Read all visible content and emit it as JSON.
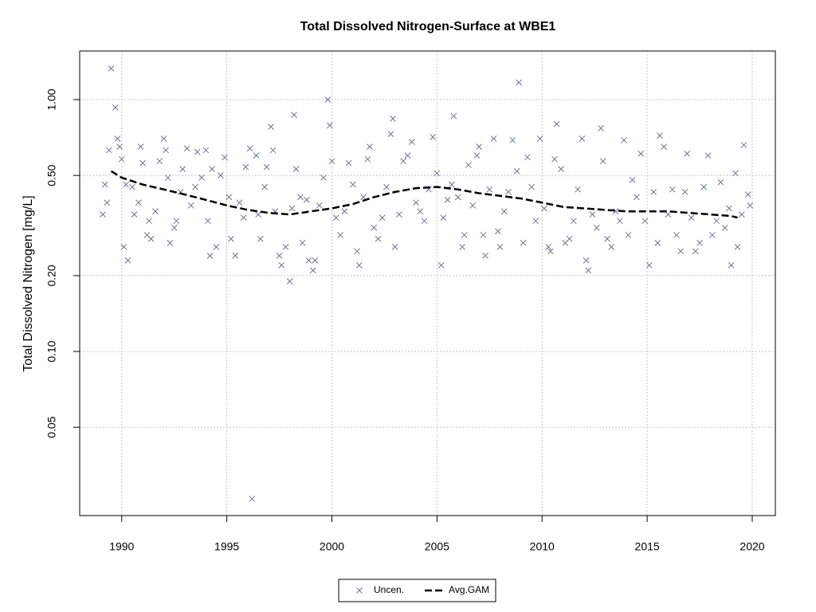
{
  "chart_data": {
    "type": "scatter",
    "title": "Total Dissolved Nitrogen-Surface at WBE1",
    "ylabel": "Total Dissolved Nitrogen [mg/L]",
    "log_y": true,
    "grid": true,
    "legend_position": "bottom",
    "xlim": [
      1988,
      2021.1
    ],
    "xticks": [
      1990,
      1995,
      2000,
      2005,
      2010,
      2015,
      2020
    ],
    "ylim": [
      0.0223,
      1.56
    ],
    "yticks": [
      {
        "value": 0.05,
        "label": "0.05"
      },
      {
        "value": 0.1,
        "label": "0.10"
      },
      {
        "value": 0.2,
        "label": "0.20"
      },
      {
        "value": 0.5,
        "label": "0.50"
      },
      {
        "value": 1,
        "label": "1.00"
      }
    ],
    "series": [
      {
        "name": "Uncen.",
        "type": "scatter",
        "color": "#6a7793",
        "x": [
          1989.1,
          1989.2,
          1989.3,
          1989.4,
          1989.5,
          1989.7,
          1989.8,
          1989.9,
          1990.0,
          1990.1,
          1990.2,
          1990.3,
          1990.5,
          1990.6,
          1990.8,
          1990.9,
          1991.0,
          1991.2,
          1991.3,
          1991.4,
          1991.6,
          1991.8,
          1992.0,
          1992.1,
          1992.2,
          1992.3,
          1992.5,
          1992.6,
          1992.8,
          1992.9,
          1993.1,
          1993.3,
          1993.5,
          1993.6,
          1993.8,
          1994.0,
          1994.1,
          1994.2,
          1994.3,
          1994.5,
          1994.7,
          1994.9,
          1995.1,
          1995.2,
          1995.4,
          1995.6,
          1995.8,
          1995.9,
          1996.1,
          1996.2,
          1996.4,
          1996.5,
          1996.6,
          1996.8,
          1996.9,
          1997.1,
          1997.2,
          1997.3,
          1997.5,
          1997.6,
          1997.8,
          1998.0,
          1998.1,
          1998.2,
          1998.3,
          1998.5,
          1998.6,
          1998.8,
          1998.9,
          1999.1,
          1999.2,
          1999.4,
          1999.6,
          1999.8,
          1999.9,
          2000.0,
          2000.2,
          2000.4,
          2000.6,
          2000.8,
          2001.0,
          2001.2,
          2001.3,
          2001.5,
          2001.7,
          2001.8,
          2002.0,
          2002.2,
          2002.4,
          2002.6,
          2002.8,
          2002.9,
          2003.0,
          2003.2,
          2003.4,
          2003.6,
          2003.8,
          2004.0,
          2004.2,
          2004.4,
          2004.6,
          2004.8,
          2005.0,
          2005.2,
          2005.3,
          2005.5,
          2005.7,
          2005.8,
          2006.0,
          2006.2,
          2006.3,
          2006.5,
          2006.7,
          2006.9,
          2007.0,
          2007.2,
          2007.3,
          2007.5,
          2007.7,
          2007.9,
          2008.0,
          2008.2,
          2008.4,
          2008.6,
          2008.8,
          2008.9,
          2009.1,
          2009.3,
          2009.5,
          2009.7,
          2009.9,
          2010.1,
          2010.3,
          2010.4,
          2010.6,
          2010.7,
          2010.9,
          2011.1,
          2011.3,
          2011.5,
          2011.7,
          2011.9,
          2012.1,
          2012.2,
          2012.4,
          2012.6,
          2012.8,
          2012.9,
          2013.1,
          2013.3,
          2013.5,
          2013.7,
          2013.9,
          2014.1,
          2014.3,
          2014.5,
          2014.7,
          2014.9,
          2015.1,
          2015.3,
          2015.5,
          2015.6,
          2015.8,
          2016.0,
          2016.2,
          2016.4,
          2016.6,
          2016.8,
          2016.9,
          2017.1,
          2017.3,
          2017.5,
          2017.7,
          2017.9,
          2018.1,
          2018.3,
          2018.5,
          2018.7,
          2018.9,
          2019.0,
          2019.2,
          2019.3,
          2019.5,
          2019.6,
          2019.8,
          2019.9
        ],
        "values": [
          0.35,
          0.46,
          0.39,
          0.63,
          1.33,
          0.93,
          0.7,
          0.65,
          0.58,
          0.26,
          0.46,
          0.23,
          0.45,
          0.35,
          0.39,
          0.65,
          0.56,
          0.29,
          0.33,
          0.28,
          0.36,
          0.57,
          0.7,
          0.63,
          0.49,
          0.27,
          0.31,
          0.33,
          0.43,
          0.53,
          0.64,
          0.38,
          0.45,
          0.62,
          0.49,
          0.63,
          0.33,
          0.24,
          0.53,
          0.26,
          0.5,
          0.59,
          0.41,
          0.28,
          0.24,
          0.39,
          0.34,
          0.54,
          0.64,
          0.026,
          0.6,
          0.35,
          0.28,
          0.45,
          0.54,
          0.78,
          0.63,
          0.36,
          0.24,
          0.22,
          0.26,
          0.19,
          0.37,
          0.87,
          0.53,
          0.41,
          0.27,
          0.4,
          0.23,
          0.21,
          0.23,
          0.38,
          0.49,
          1.0,
          0.79,
          0.57,
          0.34,
          0.29,
          0.36,
          0.56,
          0.46,
          0.25,
          0.22,
          0.41,
          0.58,
          0.65,
          0.31,
          0.28,
          0.34,
          0.45,
          0.73,
          0.84,
          0.26,
          0.35,
          0.57,
          0.6,
          0.68,
          0.39,
          0.36,
          0.33,
          0.44,
          0.71,
          0.51,
          0.22,
          0.34,
          0.4,
          0.46,
          0.86,
          0.41,
          0.26,
          0.29,
          0.55,
          0.38,
          0.6,
          0.65,
          0.29,
          0.24,
          0.44,
          0.7,
          0.3,
          0.26,
          0.36,
          0.43,
          0.69,
          0.52,
          1.17,
          0.27,
          0.59,
          0.45,
          0.33,
          0.7,
          0.37,
          0.26,
          0.25,
          0.58,
          0.8,
          0.53,
          0.27,
          0.28,
          0.33,
          0.44,
          0.7,
          0.23,
          0.21,
          0.35,
          0.31,
          0.77,
          0.57,
          0.28,
          0.26,
          0.36,
          0.33,
          0.69,
          0.29,
          0.48,
          0.41,
          0.61,
          0.33,
          0.22,
          0.43,
          0.27,
          0.72,
          0.65,
          0.35,
          0.44,
          0.29,
          0.25,
          0.43,
          0.61,
          0.34,
          0.25,
          0.27,
          0.45,
          0.6,
          0.29,
          0.33,
          0.47,
          0.31,
          0.37,
          0.22,
          0.51,
          0.26,
          0.35,
          0.66,
          0.42,
          0.38
        ]
      },
      {
        "name": "Avg.GAM",
        "type": "line",
        "line_style": "dashed",
        "color": "#000000",
        "x": [
          1989.5,
          1990,
          1991,
          1992,
          1993,
          1994,
          1995,
          1996,
          1997,
          1998,
          1999,
          2000,
          2001,
          2002,
          2003,
          2004,
          2005,
          2006,
          2007,
          2008,
          2009,
          2010,
          2011,
          2012,
          2013,
          2014,
          2015,
          2016,
          2017,
          2018,
          2019,
          2019.3
        ],
        "values": [
          0.52,
          0.49,
          0.46,
          0.44,
          0.42,
          0.4,
          0.38,
          0.365,
          0.355,
          0.35,
          0.36,
          0.37,
          0.385,
          0.41,
          0.43,
          0.445,
          0.45,
          0.44,
          0.425,
          0.415,
          0.405,
          0.39,
          0.375,
          0.37,
          0.365,
          0.36,
          0.36,
          0.36,
          0.355,
          0.35,
          0.345,
          0.34
        ]
      }
    ]
  }
}
